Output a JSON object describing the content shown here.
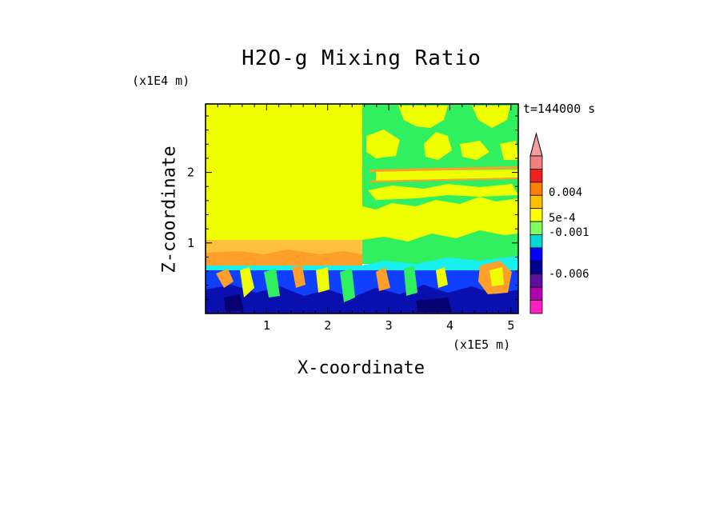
{
  "title": "H2O-g Mixing Ratio",
  "time_label": "t=144000 s",
  "colors": {
    "yellow": "#f0ff00",
    "light_yellow": "#ffff3c",
    "gold": "#ffd020",
    "orange": "#ff9f2a",
    "green": "#30f060",
    "cyan": "#18f0f0",
    "blue": "#1040ff",
    "dark_blue": "#0a10b0",
    "navy": "#060070",
    "magenta": "#f000b0"
  },
  "chart_data": {
    "type": "heatmap",
    "title": "H2O-g Mixing Ratio",
    "xlabel": "X-coordinate",
    "ylabel": "Z-coordinate",
    "x_scale_label": "(x1E5 m)",
    "y_scale_label": "(x1E4 m)",
    "x_ticks": [
      "1",
      "2",
      "3",
      "4",
      "5"
    ],
    "y_ticks": [
      "1",
      "2"
    ],
    "xlim": [
      0,
      5.12
    ],
    "ylim": [
      0,
      2.97
    ],
    "colorbar": {
      "labels": [
        "0.004",
        "5e-4",
        "-0.001",
        "-0.006"
      ],
      "levels": [
        {
          "color": "#f08080"
        },
        {
          "color": "#f02020"
        },
        {
          "color": "#ff7f00"
        },
        {
          "color": "#ffc000"
        },
        {
          "color": "#ffff00"
        },
        {
          "color": "#80ff60"
        },
        {
          "color": "#00d8d8"
        },
        {
          "color": "#0000ff"
        },
        {
          "color": "#000090"
        },
        {
          "color": "#6010a0"
        },
        {
          "color": "#b000b0"
        },
        {
          "color": "#ff20c0"
        }
      ]
    }
  }
}
